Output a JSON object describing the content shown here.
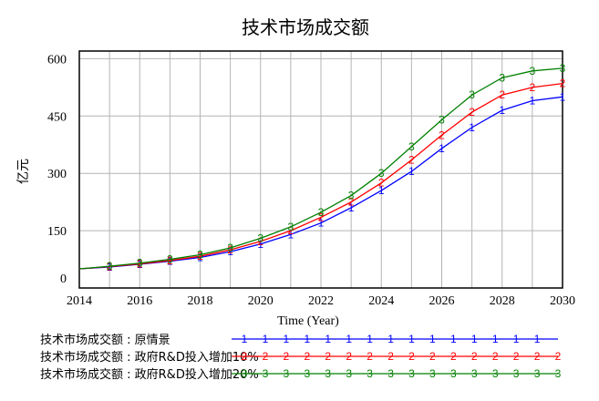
{
  "chart_data": {
    "type": "line",
    "title": "技术市场成交额",
    "xlabel": "Time (Year)",
    "ylabel": "亿元",
    "xlim": [
      2014,
      2030
    ],
    "ylim": [
      0,
      620
    ],
    "x_ticks": [
      2014,
      2016,
      2018,
      2020,
      2022,
      2024,
      2026,
      2028,
      2030
    ],
    "y_ticks": [
      0,
      150,
      300,
      450,
      600
    ],
    "grid": true,
    "legend_position": "bottom",
    "x": [
      2014,
      2015,
      2016,
      2017,
      2018,
      2019,
      2020,
      2021,
      2022,
      2023,
      2024,
      2025,
      2026,
      2027,
      2028,
      2029,
      2030
    ],
    "series": [
      {
        "name": "技术市场成交额 : 原情景",
        "marker": "1",
        "color": "#0000ff",
        "values": [
          50,
          55,
          62,
          70,
          80,
          95,
          115,
          140,
          170,
          210,
          255,
          305,
          365,
          420,
          465,
          490,
          500
        ]
      },
      {
        "name": "技术市场成交额 : 政府R&D投入增加10%",
        "marker": "2",
        "color": "#ff0000",
        "values": [
          50,
          56,
          63,
          72,
          83,
          100,
          122,
          150,
          185,
          225,
          275,
          335,
          400,
          460,
          505,
          525,
          535
        ]
      },
      {
        "name": "技术市场成交额 : 政府R&D投入增加20%",
        "marker": "3",
        "color": "#008000",
        "values": [
          50,
          57,
          65,
          75,
          87,
          105,
          130,
          160,
          198,
          242,
          300,
          370,
          440,
          505,
          550,
          568,
          575
        ]
      }
    ],
    "legend_markers": [
      [
        2015,
        2016,
        2017,
        2018,
        2019,
        2020,
        2021,
        2022,
        2023,
        2024,
        2025,
        2026,
        2027,
        2028,
        2029
      ],
      [
        2015,
        2016,
        2017,
        2018,
        2019,
        2020,
        2021,
        2022,
        2023,
        2024,
        2025,
        2026,
        2027,
        2028,
        2029,
        2030
      ],
      [
        2015,
        2016,
        2017,
        2018,
        2019,
        2020,
        2021,
        2022,
        2023,
        2024,
        2025,
        2026,
        2027,
        2028,
        2029,
        2030
      ]
    ]
  }
}
